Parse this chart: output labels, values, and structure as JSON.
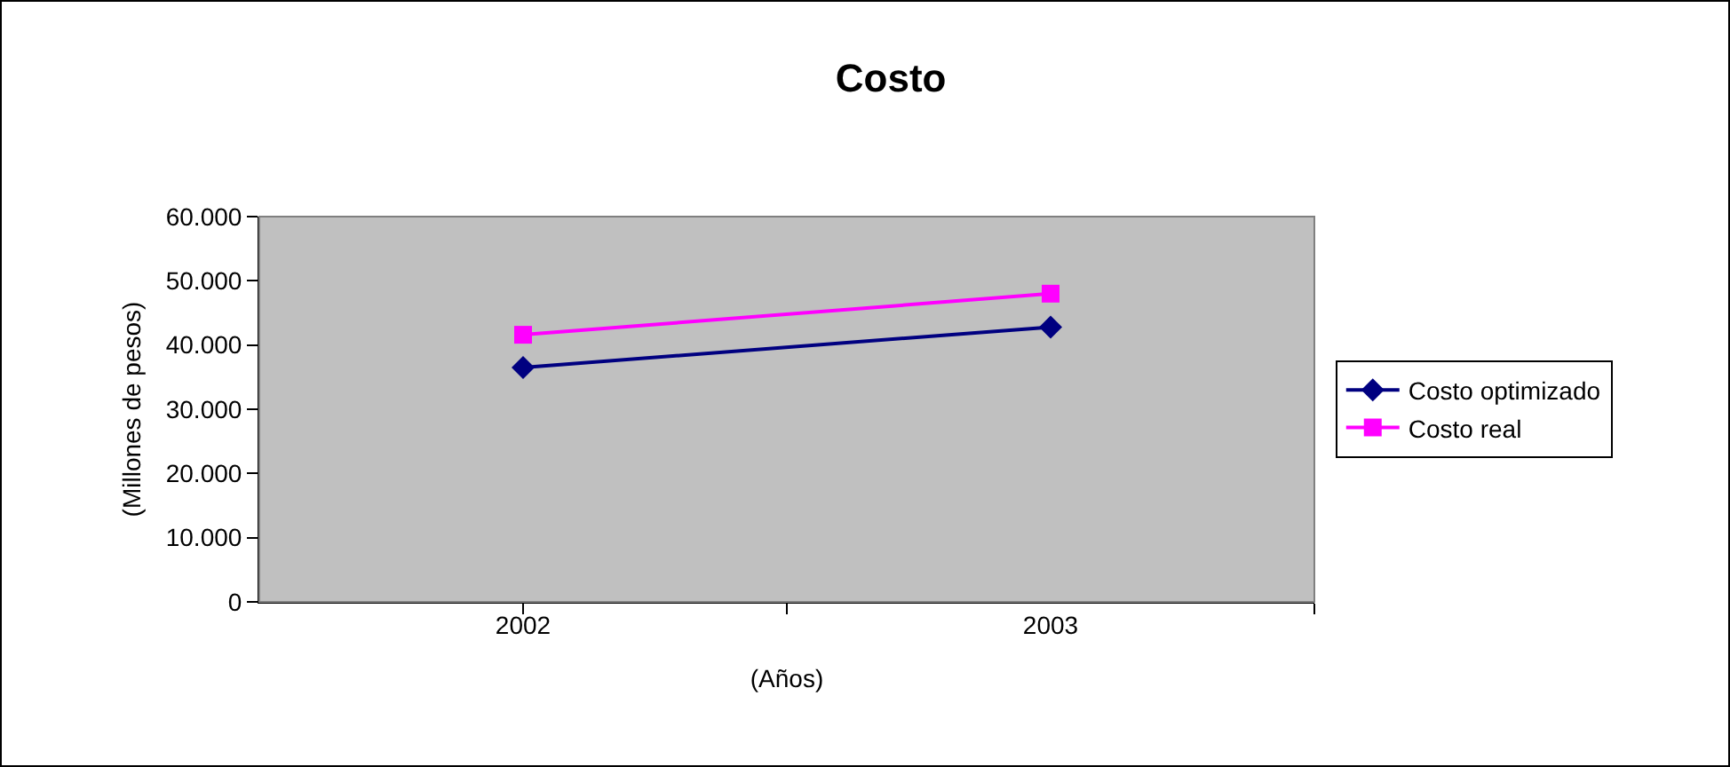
{
  "chart_data": {
    "type": "line",
    "title": "Costo",
    "xlabel": "(Años)",
    "ylabel": "(Millones de pesos)",
    "categories": [
      "2002",
      "2003"
    ],
    "series": [
      {
        "name": "Costo optimizado",
        "color": "#000080",
        "marker": "diamond",
        "values": [
          36500,
          42800
        ]
      },
      {
        "name": "Costo real",
        "color": "#ff00ff",
        "marker": "square",
        "values": [
          41600,
          48000
        ]
      }
    ],
    "ylim": [
      0,
      60000
    ],
    "yticks": [
      {
        "value": 0,
        "label": "0"
      },
      {
        "value": 10000,
        "label": "10.000"
      },
      {
        "value": 20000,
        "label": "20.000"
      },
      {
        "value": 30000,
        "label": "30.000"
      },
      {
        "value": 40000,
        "label": "40.000"
      },
      {
        "value": 50000,
        "label": "50.000"
      },
      {
        "value": 60000,
        "label": "60.000"
      }
    ],
    "grid": false,
    "legend": "right",
    "line_style": "solid"
  }
}
